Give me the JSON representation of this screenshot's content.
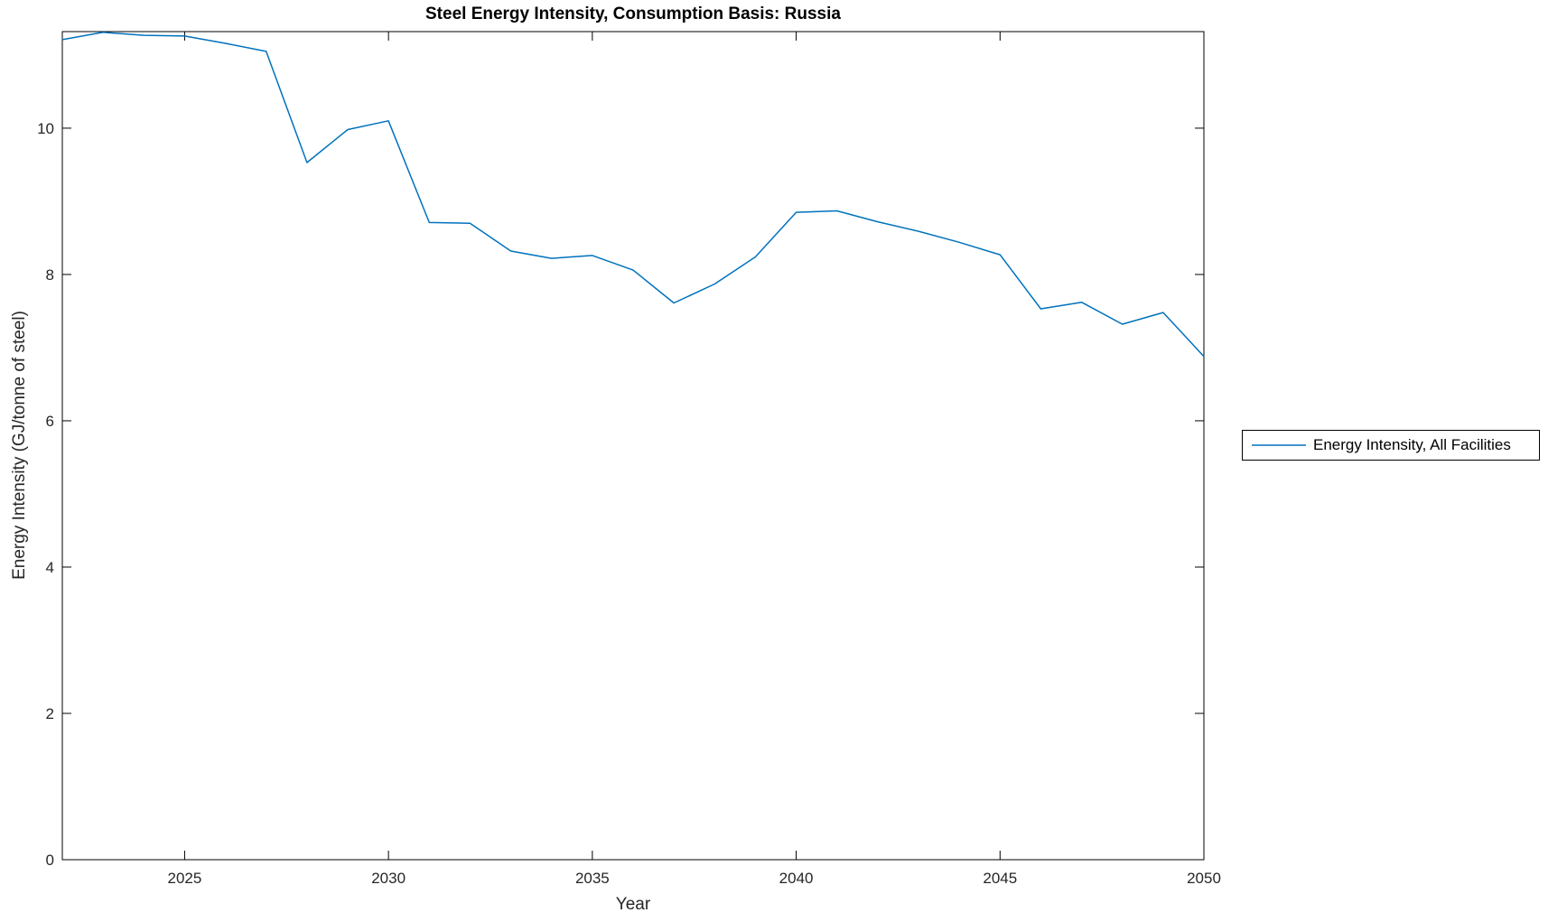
{
  "chart_data": {
    "type": "line",
    "title": "Steel Energy Intensity, Consumption Basis: Russia",
    "xlabel": "Year",
    "ylabel": "Energy Intensity (GJ/tonne of steel)",
    "xlim": [
      2022,
      2050
    ],
    "ylim": [
      0,
      11.32
    ],
    "x_ticks": [
      2025,
      2030,
      2035,
      2040,
      2045,
      2050
    ],
    "y_ticks": [
      0,
      2,
      4,
      6,
      8,
      10
    ],
    "grid": false,
    "box": true,
    "tick_direction": "in",
    "axis_color": "#000000",
    "tick_label_color": "#262626",
    "line_color": "#0072BD",
    "legend": {
      "position": "right-outside",
      "entries": [
        "Energy Intensity, All Facilities"
      ]
    },
    "series": [
      {
        "name": "Energy Intensity, All Facilities",
        "x": [
          2022,
          2023,
          2024,
          2025,
          2026,
          2027,
          2028,
          2029,
          2030,
          2031,
          2032,
          2033,
          2034,
          2035,
          2036,
          2037,
          2038,
          2039,
          2040,
          2041,
          2042,
          2043,
          2044,
          2045,
          2046,
          2047,
          2048,
          2049,
          2050
        ],
        "values": [
          11.21,
          11.31,
          11.27,
          11.26,
          11.16,
          11.05,
          9.53,
          9.98,
          10.1,
          8.71,
          8.7,
          8.32,
          8.22,
          8.26,
          8.06,
          7.61,
          7.87,
          8.24,
          8.85,
          8.87,
          8.72,
          8.59,
          8.44,
          8.27,
          7.53,
          7.62,
          7.32,
          7.48,
          6.88
        ]
      }
    ]
  }
}
